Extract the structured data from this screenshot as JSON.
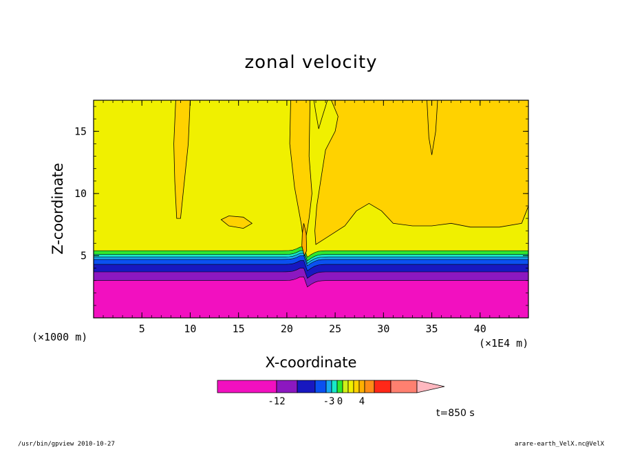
{
  "chart_data": {
    "type": "contour",
    "title": "zonal velocity",
    "xlabel": "X-coordinate",
    "ylabel": "Z-coordinate",
    "x_unit": "(×1000 m)",
    "x_scale_note": "(×1E4 m)",
    "xlim": [
      0,
      45
    ],
    "ylim": [
      0,
      17.5
    ],
    "xticks": [
      "5",
      "10",
      "15",
      "20",
      "25",
      "30",
      "35",
      "40"
    ],
    "yticks": [
      "5",
      "10",
      "15"
    ],
    "time_label": "t=850 s",
    "colorbar": {
      "tick_labels": [
        "-12",
        "-3",
        "0",
        "4"
      ],
      "colors": [
        "#f210c0",
        "#8c18c0",
        "#1818c0",
        "#0a50f0",
        "#18a8f0",
        "#18e8c8",
        "#30e830",
        "#d0f018",
        "#f0f000",
        "#ffd200",
        "#ffb000",
        "#ff8c18",
        "#ff2818",
        "#ff8070",
        "#ffb8c0"
      ]
    },
    "layers": [
      {
        "level": "below -12",
        "color": "#f210c0",
        "z_range": [
          0,
          3
        ]
      },
      {
        "level": "-12 to -9",
        "color": "#8c18c0",
        "z_range": [
          3,
          3.7
        ]
      },
      {
        "level": "-9 to -6",
        "color": "#1818c0",
        "z_range": [
          3.7,
          4.3
        ]
      },
      {
        "level": "-6 to -3",
        "color": "#0a50f0",
        "z_range": [
          4.3,
          4.7
        ]
      },
      {
        "level": "-3 to -2",
        "color": "#18a8f0",
        "z_range": [
          4.7,
          4.9
        ]
      },
      {
        "level": "-2 to -1",
        "color": "#18e8c8",
        "z_range": [
          4.9,
          5.1
        ]
      },
      {
        "level": "-1 to 0",
        "color": "#30e830",
        "z_range": [
          5.1,
          5.4
        ]
      },
      {
        "level": "0 to 1",
        "color": "#f0f000",
        "z_range": [
          5.4,
          17.5
        ]
      },
      {
        "level": "1 to 2",
        "color": "#ffd200",
        "regions": "upper-right and vertical plumes"
      },
      {
        "level": "2 to 3",
        "color": "#ffb000",
        "regions": "near x=22 ridge"
      }
    ]
  },
  "footer": {
    "left": "/usr/bin/gpview   2010-10-27",
    "right": "arare-earth_VelX.nc@VelX"
  }
}
